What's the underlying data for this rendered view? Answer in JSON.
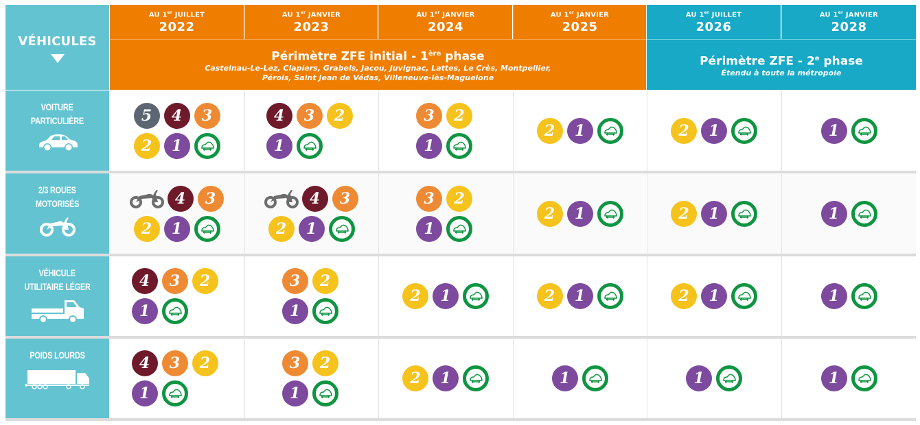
{
  "header": {
    "vehicles_label": "VÉHICULES",
    "dates": [
      {
        "prefix": "AU 1",
        "sup": "er",
        "month": "JUILLET",
        "year": "2022"
      },
      {
        "prefix": "AU 1",
        "sup": "er",
        "month": "JANVIER",
        "year": "2023"
      },
      {
        "prefix": "AU 1",
        "sup": "er",
        "month": "JANVIER",
        "year": "2024"
      },
      {
        "prefix": "AU 1",
        "sup": "er",
        "month": "JANVIER",
        "year": "2025"
      },
      {
        "prefix": "AU 1",
        "sup": "er",
        "month": "JUILLET",
        "year": "2026"
      },
      {
        "prefix": "AU 1",
        "sup": "er",
        "month": "JANVIER",
        "year": "2028"
      }
    ],
    "phase1": {
      "title": "Périmètre ZFE initial - 1",
      "title_sup": "ère",
      "title_end": " phase",
      "communes_line1": "Castelnau-Le-Lez, Clapiers, Grabels, Jacou, Juvignac, Lattes, Le Crès, Montpellier,",
      "communes_line2": "Pérols, Saint Jean de Védas, Villeneuve-lès-Maguelone"
    },
    "phase2": {
      "title": "Périmètre ZFE - 2",
      "title_sup": "e",
      "title_end": " phase",
      "subtitle": "Étendu à toute la métropole"
    }
  },
  "colors": {
    "orange_phase": "#ef7d00",
    "blue_phase": "#17a9c6",
    "vehicle_column": "#63c3d1",
    "critair_5": "#5c6672",
    "critair_4": "#6e1a2b",
    "critair_3": "#ef8a34",
    "critair_2": "#f6c21c",
    "critair_1": "#7d4a9e",
    "critair_electric": "#0f9542"
  },
  "rows": [
    {
      "label_line1": "VOITURE",
      "label_line2": "PARTICULIÈRE",
      "icon": "car-icon",
      "cells": [
        [
          "5",
          "4",
          "3",
          "2",
          "1",
          "E"
        ],
        [
          "4",
          "3",
          "2",
          "1",
          "E"
        ],
        [
          "3",
          "2",
          "1",
          "E"
        ],
        [
          "2",
          "1",
          "E"
        ],
        [
          "2",
          "1",
          "E"
        ],
        [
          "1",
          "E"
        ]
      ]
    },
    {
      "label_line1": "2/3 ROUES",
      "label_line2": "MOTORISÉS",
      "icon": "motorcycle-icon",
      "cells": [
        [
          "NC",
          "4",
          "3",
          "2",
          "1",
          "E"
        ],
        [
          "NC",
          "4",
          "3",
          "2",
          "1",
          "E"
        ],
        [
          "3",
          "2",
          "1",
          "E"
        ],
        [
          "2",
          "1",
          "E"
        ],
        [
          "2",
          "1",
          "E"
        ],
        [
          "1",
          "E"
        ]
      ]
    },
    {
      "label_line1": "VÉHICULE",
      "label_line2": "UTILITAIRE LÉGER",
      "icon": "pickup-truck-icon",
      "cells": [
        [
          "4",
          "3",
          "2",
          "1",
          "E"
        ],
        [
          "3",
          "2",
          "1",
          "E"
        ],
        [
          "2",
          "1",
          "E"
        ],
        [
          "2",
          "1",
          "E"
        ],
        [
          "2",
          "1",
          "E"
        ],
        [
          "1",
          "E"
        ]
      ]
    },
    {
      "label_line1": "POIDS LOURDS",
      "label_line2": "",
      "icon": "semi-truck-icon",
      "cells": [
        [
          "4",
          "3",
          "2",
          "1",
          "E"
        ],
        [
          "3",
          "2",
          "1",
          "E"
        ],
        [
          "2",
          "1",
          "E"
        ],
        [
          "1",
          "E"
        ],
        [
          "1",
          "E"
        ],
        [
          "1",
          "E"
        ]
      ]
    }
  ]
}
